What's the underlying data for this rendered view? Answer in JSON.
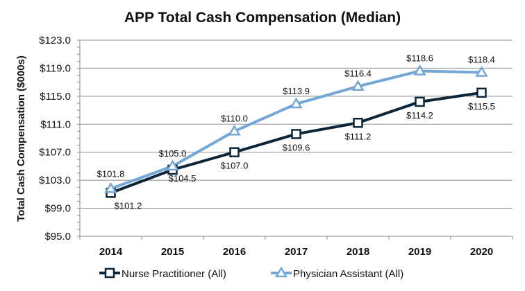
{
  "chart_data": {
    "type": "line",
    "title": "APP Total Cash Compensation (Median)",
    "xlabel": "",
    "ylabel": "Total Cash Compensation ($000s)",
    "categories": [
      "2014",
      "2015",
      "2016",
      "2017",
      "2018",
      "2019",
      "2020"
    ],
    "ylim": [
      95,
      123
    ],
    "ytick_step": 4,
    "ytick_labels": [
      "$95.0",
      "$99.0",
      "$103.0",
      "$107.0",
      "$111.0",
      "$115.0",
      "$119.0",
      "$123.0"
    ],
    "grid": true,
    "legend_position": "bottom",
    "series": [
      {
        "name": "Nurse Practitioner (All)",
        "color": "#0d2538",
        "marker": "square",
        "values": [
          101.2,
          104.5,
          107.0,
          109.6,
          111.2,
          114.2,
          115.5
        ],
        "labels": [
          "$101.2",
          "$104.5",
          "$107.0",
          "$109.6",
          "$111.2",
          "$114.2",
          "$115.5"
        ]
      },
      {
        "name": "Physician Assistant (All)",
        "color": "#75a7d6",
        "marker": "triangle",
        "values": [
          101.8,
          105.0,
          110.0,
          113.9,
          116.4,
          118.6,
          118.4
        ],
        "labels": [
          "$101.8",
          "$105.0",
          "$110.0",
          "$113.9",
          "$116.4",
          "$118.6",
          "$118.4"
        ]
      }
    ]
  }
}
